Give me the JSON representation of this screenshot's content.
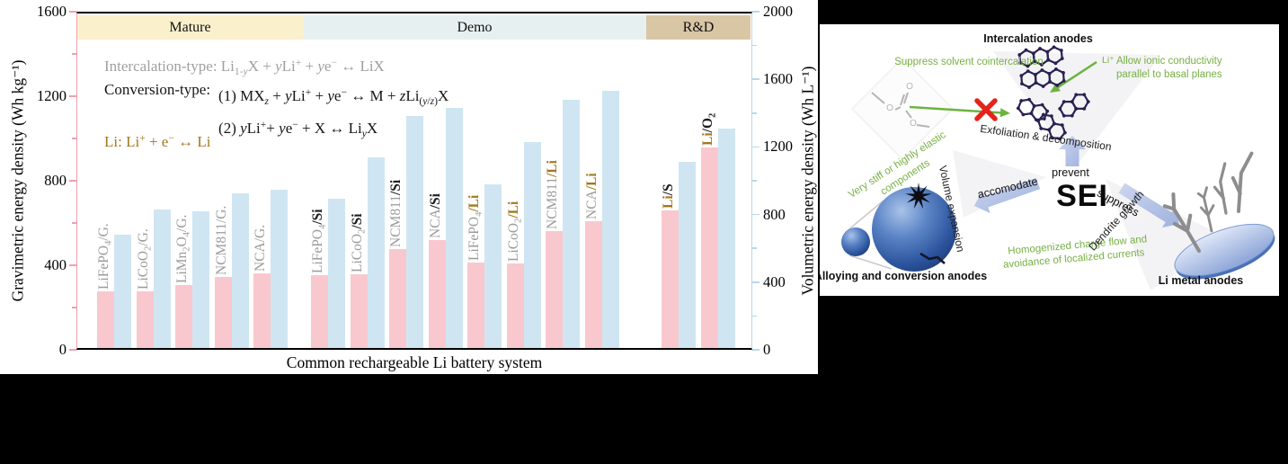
{
  "colors": {
    "pink_bar": "#f9c8ce",
    "blue_bar": "#cfe6f2",
    "pink_axis": "#f2a0ac",
    "blue_axis": "#b9d9e8",
    "band_mature": "#faf0cb",
    "band_demo": "#e7f0f1",
    "band_rnd": "#d9c6a5",
    "gray_label": "#9b9b9b",
    "brown": "#a2791f",
    "green": "#76b043",
    "black": "#1c1c1c"
  },
  "chart_data": {
    "type": "bar",
    "title": "",
    "xlabel": "Common rechargeable Li battery system",
    "grid": false,
    "legend": "none",
    "left_axis": {
      "label": "Gravimetric energy density (Wh kg⁻¹)",
      "lim": [
        0,
        1600
      ],
      "ticks": [
        0,
        400,
        800,
        1200,
        1600
      ],
      "minor_step": 200,
      "color": "#f2a0ac"
    },
    "right_axis": {
      "label": "Volumetric energy density (Wh L⁻¹)",
      "lim": [
        0,
        2000
      ],
      "ticks": [
        0,
        400,
        800,
        1200,
        1600,
        2000
      ],
      "minor_step": 200,
      "color": "#b9d9e8"
    },
    "group_bands": [
      {
        "label": "Mature",
        "systems": [
          "LiFePO₄/G.",
          "LiCoO₂/G.",
          "LiMn₂O₄/G.",
          "NCM811/G.",
          "NCA/G."
        ]
      },
      {
        "label": "Demo",
        "systems": [
          "LiFePO₄/Si",
          "LiCoO₂/Si",
          "NCM811/Si",
          "NCA/Si",
          "LiFePO₄/Li",
          "LiCoO₂/Li",
          "NCM811/Li",
          "NCA/Li"
        ]
      },
      {
        "label": "R&D",
        "systems": [
          "Li/S",
          "Li/O₂"
        ]
      }
    ],
    "categories": [
      "LiFePO₄/G.",
      "LiCoO₂/G.",
      "LiMn₂O₄/G.",
      "NCM811/G.",
      "NCA/G.",
      "LiFePO₄/Si",
      "LiCoO₂/Si",
      "NCM811/Si",
      "NCA/Si",
      "LiFePO₄/Li",
      "LiCoO₂/Li",
      "NCM811/Li",
      "NCA/Li",
      "Li/S",
      "Li/O₂"
    ],
    "series": [
      {
        "name": "Gravimetric energy density (Wh kg⁻¹)",
        "axis": "left",
        "color": "#f9c8ce",
        "values": [
          270,
          270,
          300,
          335,
          355,
          345,
          350,
          470,
          510,
          405,
          400,
          555,
          600,
          650,
          950
        ]
      },
      {
        "name": "Volumetric energy density (Wh L⁻¹)",
        "axis": "right",
        "color": "#cfe6f2",
        "values": [
          670,
          820,
          810,
          915,
          935,
          885,
          1130,
          1370,
          1420,
          970,
          1220,
          1470,
          1520,
          1100,
          1300
        ]
      }
    ]
  },
  "left_chart": {
    "x_label": "Common rechargeable Li battery system",
    "y_left_label": "Gravimetric energy density (Wh kg⁻¹)",
    "y_right_label": "Volumetric energy density (Wh L⁻¹)",
    "bands": [
      {
        "label": "Mature"
      },
      {
        "label": "Demo"
      },
      {
        "label": "R&D"
      }
    ],
    "equations": {
      "intercalation": [
        {
          "t": "Intercalation-type: Li"
        },
        {
          "t": "1-",
          "sub": 1
        },
        {
          "t": "y",
          "sub": 1,
          "i": 1
        },
        {
          "t": "X + "
        },
        {
          "t": "y",
          "i": 1
        },
        {
          "t": "Li"
        },
        {
          "t": "+",
          "sup": 1
        },
        {
          "t": " + "
        },
        {
          "t": "y",
          "i": 1
        },
        {
          "t": "e"
        },
        {
          "t": "−",
          "sup": 1
        },
        {
          "t": " ↔ LiX"
        }
      ],
      "conversion_label": "Conversion-type:",
      "conversion_line1": [
        {
          "t": "(1) MX"
        },
        {
          "t": "z",
          "sub": 1,
          "i": 1
        },
        {
          "t": " + "
        },
        {
          "t": "y",
          "i": 1
        },
        {
          "t": "Li"
        },
        {
          "t": "+",
          "sup": 1
        },
        {
          "t": " + "
        },
        {
          "t": "y",
          "i": 1
        },
        {
          "t": "e"
        },
        {
          "t": "−",
          "sup": 1
        },
        {
          "t": " ↔ M + "
        },
        {
          "t": "z",
          "i": 1
        },
        {
          "t": "Li"
        },
        {
          "t": "(",
          "sub": 1
        },
        {
          "t": "y",
          "sub": 1,
          "i": 1
        },
        {
          "t": "/",
          "sub": 1
        },
        {
          "t": "z",
          "sub": 1,
          "i": 1
        },
        {
          "t": ")",
          "sub": 1
        },
        {
          "t": "X"
        }
      ],
      "conversion_line2": [
        {
          "t": "(2) "
        },
        {
          "t": "y",
          "i": 1
        },
        {
          "t": "Li"
        },
        {
          "t": "+",
          "sup": 1
        },
        {
          "t": "+ "
        },
        {
          "t": "y",
          "i": 1
        },
        {
          "t": "e"
        },
        {
          "t": "−",
          "sup": 1
        },
        {
          "t": " + X ↔ Li"
        },
        {
          "t": "y",
          "sub": 1,
          "i": 1
        },
        {
          "t": "X"
        }
      ],
      "li": [
        {
          "t": "Li: Li"
        },
        {
          "t": "+",
          "sup": 1
        },
        {
          "t": " + e"
        },
        {
          "t": "−",
          "sup": 1
        },
        {
          "t": " ↔ Li"
        }
      ]
    },
    "systems": [
      {
        "group": "mature",
        "parts": [
          {
            "t": "LiFePO",
            "c": "g"
          },
          {
            "t": "4",
            "c": "g",
            "sub": 1
          },
          {
            "t": "/G.",
            "c": "g"
          }
        ]
      },
      {
        "group": "mature",
        "parts": [
          {
            "t": "LiCoO",
            "c": "g"
          },
          {
            "t": "2",
            "c": "g",
            "sub": 1
          },
          {
            "t": "/G.",
            "c": "g"
          }
        ]
      },
      {
        "group": "mature",
        "parts": [
          {
            "t": "LiMn",
            "c": "g"
          },
          {
            "t": "2",
            "c": "g",
            "sub": 1
          },
          {
            "t": "O",
            "c": "g"
          },
          {
            "t": "4",
            "c": "g",
            "sub": 1
          },
          {
            "t": "/G.",
            "c": "g"
          }
        ]
      },
      {
        "group": "mature",
        "parts": [
          {
            "t": "NCM811/G.",
            "c": "g"
          }
        ]
      },
      {
        "group": "mature",
        "parts": [
          {
            "t": "NCA/G.",
            "c": "g"
          }
        ]
      },
      {
        "group": "demo",
        "parts": [
          {
            "t": "LiFePO",
            "c": "g"
          },
          {
            "t": "4",
            "c": "g",
            "sub": 1
          },
          {
            "t": "/Si",
            "c": "k",
            "bold": 1
          }
        ]
      },
      {
        "group": "demo",
        "parts": [
          {
            "t": "LiCoO",
            "c": "g"
          },
          {
            "t": "2",
            "c": "g",
            "sub": 1
          },
          {
            "t": "/Si",
            "c": "k",
            "bold": 1
          }
        ]
      },
      {
        "group": "demo",
        "parts": [
          {
            "t": "NCM811",
            "c": "g"
          },
          {
            "t": "/Si",
            "c": "k",
            "bold": 1
          }
        ]
      },
      {
        "group": "demo",
        "parts": [
          {
            "t": "NCA",
            "c": "g"
          },
          {
            "t": "/Si",
            "c": "k",
            "bold": 1
          }
        ]
      },
      {
        "group": "demo",
        "parts": [
          {
            "t": "LiFePO",
            "c": "g"
          },
          {
            "t": "4",
            "c": "g",
            "sub": 1
          },
          {
            "t": "/Li",
            "c": "br",
            "bold": 1
          }
        ]
      },
      {
        "group": "demo",
        "parts": [
          {
            "t": "LiCoO",
            "c": "g"
          },
          {
            "t": "2",
            "c": "g",
            "sub": 1
          },
          {
            "t": "/Li",
            "c": "br",
            "bold": 1
          }
        ]
      },
      {
        "group": "demo",
        "parts": [
          {
            "t": "NCM811",
            "c": "g"
          },
          {
            "t": "/Li",
            "c": "br",
            "bold": 1
          }
        ]
      },
      {
        "group": "demo",
        "parts": [
          {
            "t": "NCA",
            "c": "g"
          },
          {
            "t": "/Li",
            "c": "br",
            "bold": 1
          }
        ]
      },
      {
        "group": "rnd",
        "parts": [
          {
            "t": "Li",
            "c": "br",
            "bold": 1
          },
          {
            "t": "/S",
            "c": "k",
            "bold": 1
          }
        ]
      },
      {
        "group": "rnd",
        "parts": [
          {
            "t": "Li",
            "c": "br",
            "bold": 1
          },
          {
            "t": "/O",
            "c": "k",
            "bold": 1
          },
          {
            "t": "2",
            "c": "k",
            "bold": 1,
            "sub": 1
          }
        ]
      }
    ]
  },
  "right_diagram": {
    "sei": "SEI",
    "prevent": "prevent",
    "accomodate": "accomodate",
    "suppress": "suppress",
    "intercalation_title": "Intercalation anodes",
    "suppress_solvent": "Suppress solvent cointercalation",
    "allow_ionic_lines": [
      "Allow ionic conductivity",
      "parallel to basal planes"
    ],
    "li_ion": "Li⁺",
    "exfoliation": "Exfoliation & decomposition",
    "very_stiff_lines": [
      "Very stiff or highly elastic",
      "components"
    ],
    "volume_expansion": "Volume expansion",
    "alloying_title": "Alloying and conversion anodes",
    "homogenized_lines": [
      "Homogenized charge flow and",
      "avoidance of localized currents"
    ],
    "dendrite_growth": "Dendrite growth",
    "li_metal_title": "Li metal anodes",
    "molecule_atoms": [
      "O",
      "O",
      "O"
    ]
  }
}
